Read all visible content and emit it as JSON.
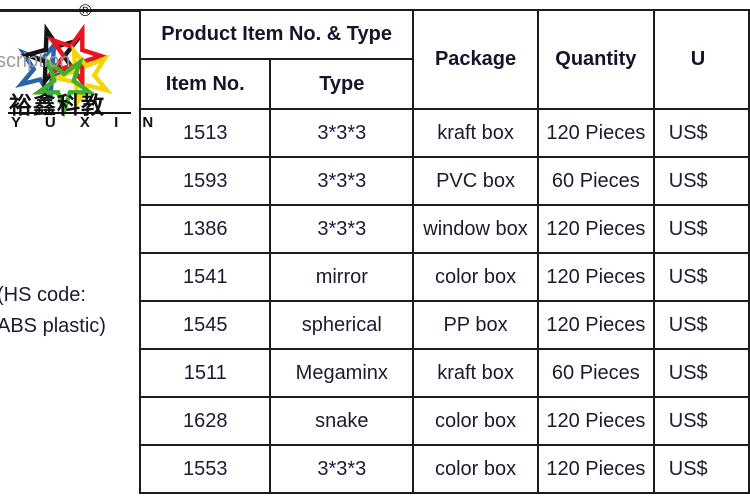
{
  "page": {
    "background": "#ffffff",
    "text_color": "#1b1b2f",
    "border_color": "#1c1c1c"
  },
  "logo": {
    "registered_mark": "®",
    "overlay_text_fragment": "scription",
    "overlay_color": "#9b9b9b",
    "chinese_name": "裕鑫科教",
    "latin_name": "Y U X I N",
    "star_colors": {
      "black": "#141414",
      "red": "#e8151e",
      "blue": "#2b62ad",
      "green": "#3fae2a",
      "yellow": "#f5d408"
    }
  },
  "left_notes": {
    "line1": "(HS code:",
    "line2": "ABS plastic)"
  },
  "table": {
    "header": {
      "product_group": "Product Item No. & Type",
      "item_no": "Item No.",
      "type": "Type",
      "package": "Package",
      "quantity": "Quantity",
      "unit_price_fragment": "U"
    },
    "rows": [
      {
        "item_no": "1513",
        "type": "3*3*3",
        "package": "kraft box",
        "quantity": "120 Pieces",
        "price_fragment": "US$"
      },
      {
        "item_no": "1593",
        "type": "3*3*3",
        "package": "PVC box",
        "quantity": "60 Pieces",
        "price_fragment": "US$"
      },
      {
        "item_no": "1386",
        "type": "3*3*3",
        "package": "window box",
        "quantity": "120 Pieces",
        "price_fragment": "US$"
      },
      {
        "item_no": "1541",
        "type": "mirror",
        "package": "color box",
        "quantity": "120 Pieces",
        "price_fragment": "US$"
      },
      {
        "item_no": "1545",
        "type": "spherical",
        "package": "PP box",
        "quantity": "120 Pieces",
        "price_fragment": "US$"
      },
      {
        "item_no": "1511",
        "type": "Megaminx",
        "package": "kraft box",
        "quantity": "60 Pieces",
        "price_fragment": "US$"
      },
      {
        "item_no": "1628",
        "type": "snake",
        "package": "color box",
        "quantity": "120 Pieces",
        "price_fragment": "US$"
      },
      {
        "item_no": "1553",
        "type": "3*3*3",
        "package": "color box",
        "quantity": "120 Pieces",
        "price_fragment": "US$"
      }
    ]
  }
}
